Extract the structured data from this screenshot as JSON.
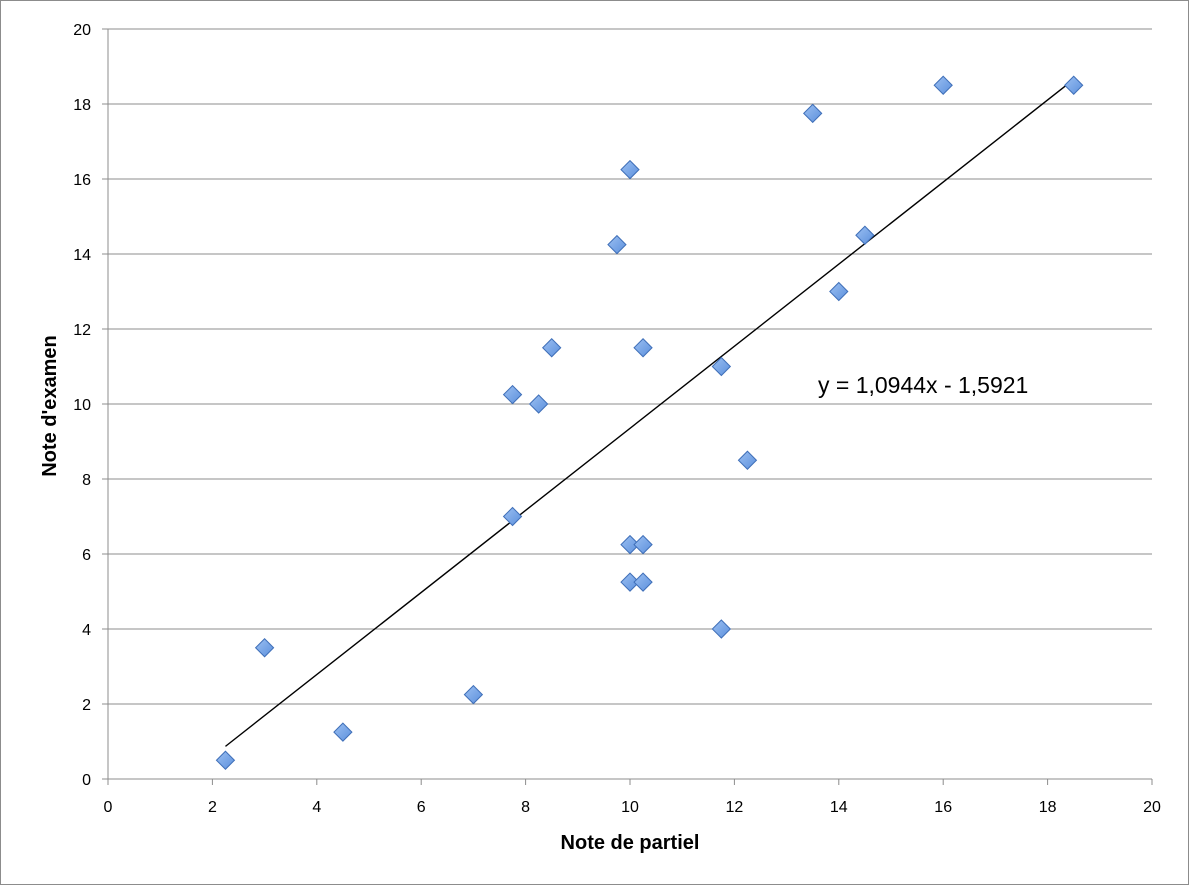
{
  "chart_data": {
    "type": "scatter",
    "title": "",
    "xlabel": "Note de partiel",
    "ylabel": "Note d'examen",
    "xlim": [
      0,
      20
    ],
    "ylim": [
      0,
      20
    ],
    "x_ticks": [
      "0",
      "2",
      "4",
      "6",
      "8",
      "10",
      "12",
      "14",
      "16",
      "18",
      "20"
    ],
    "y_ticks": [
      "0",
      "2",
      "4",
      "6",
      "8",
      "10",
      "12",
      "14",
      "16",
      "18",
      "20"
    ],
    "grid": "horizontal",
    "legend": "none",
    "marker": "diamond",
    "marker_color": "#5b8fdc",
    "series": [
      {
        "points": [
          [
            2.25,
            0.5
          ],
          [
            3,
            3.5
          ],
          [
            4.5,
            1.25
          ],
          [
            7,
            2.25
          ],
          [
            7.75,
            7
          ],
          [
            7.75,
            10.25
          ],
          [
            8.25,
            10
          ],
          [
            8.5,
            11.5
          ],
          [
            9.75,
            14.25
          ],
          [
            10,
            16.25
          ],
          [
            10,
            6.25
          ],
          [
            10,
            5.25
          ],
          [
            10.25,
            6.25
          ],
          [
            10.25,
            5.25
          ],
          [
            10.25,
            11.5
          ],
          [
            11.75,
            11
          ],
          [
            11.75,
            4
          ],
          [
            12.25,
            8.5
          ],
          [
            13.5,
            17.75
          ],
          [
            14,
            13
          ],
          [
            14.5,
            14.5
          ],
          [
            16,
            18.5
          ],
          [
            18.5,
            18.5
          ]
        ]
      }
    ],
    "trendline": {
      "type": "linear",
      "slope": 1.0944,
      "intercept": -1.5921,
      "x_range": [
        2.25,
        18.5
      ],
      "equation_label": "y = 1,0944x - 1,5921"
    }
  }
}
